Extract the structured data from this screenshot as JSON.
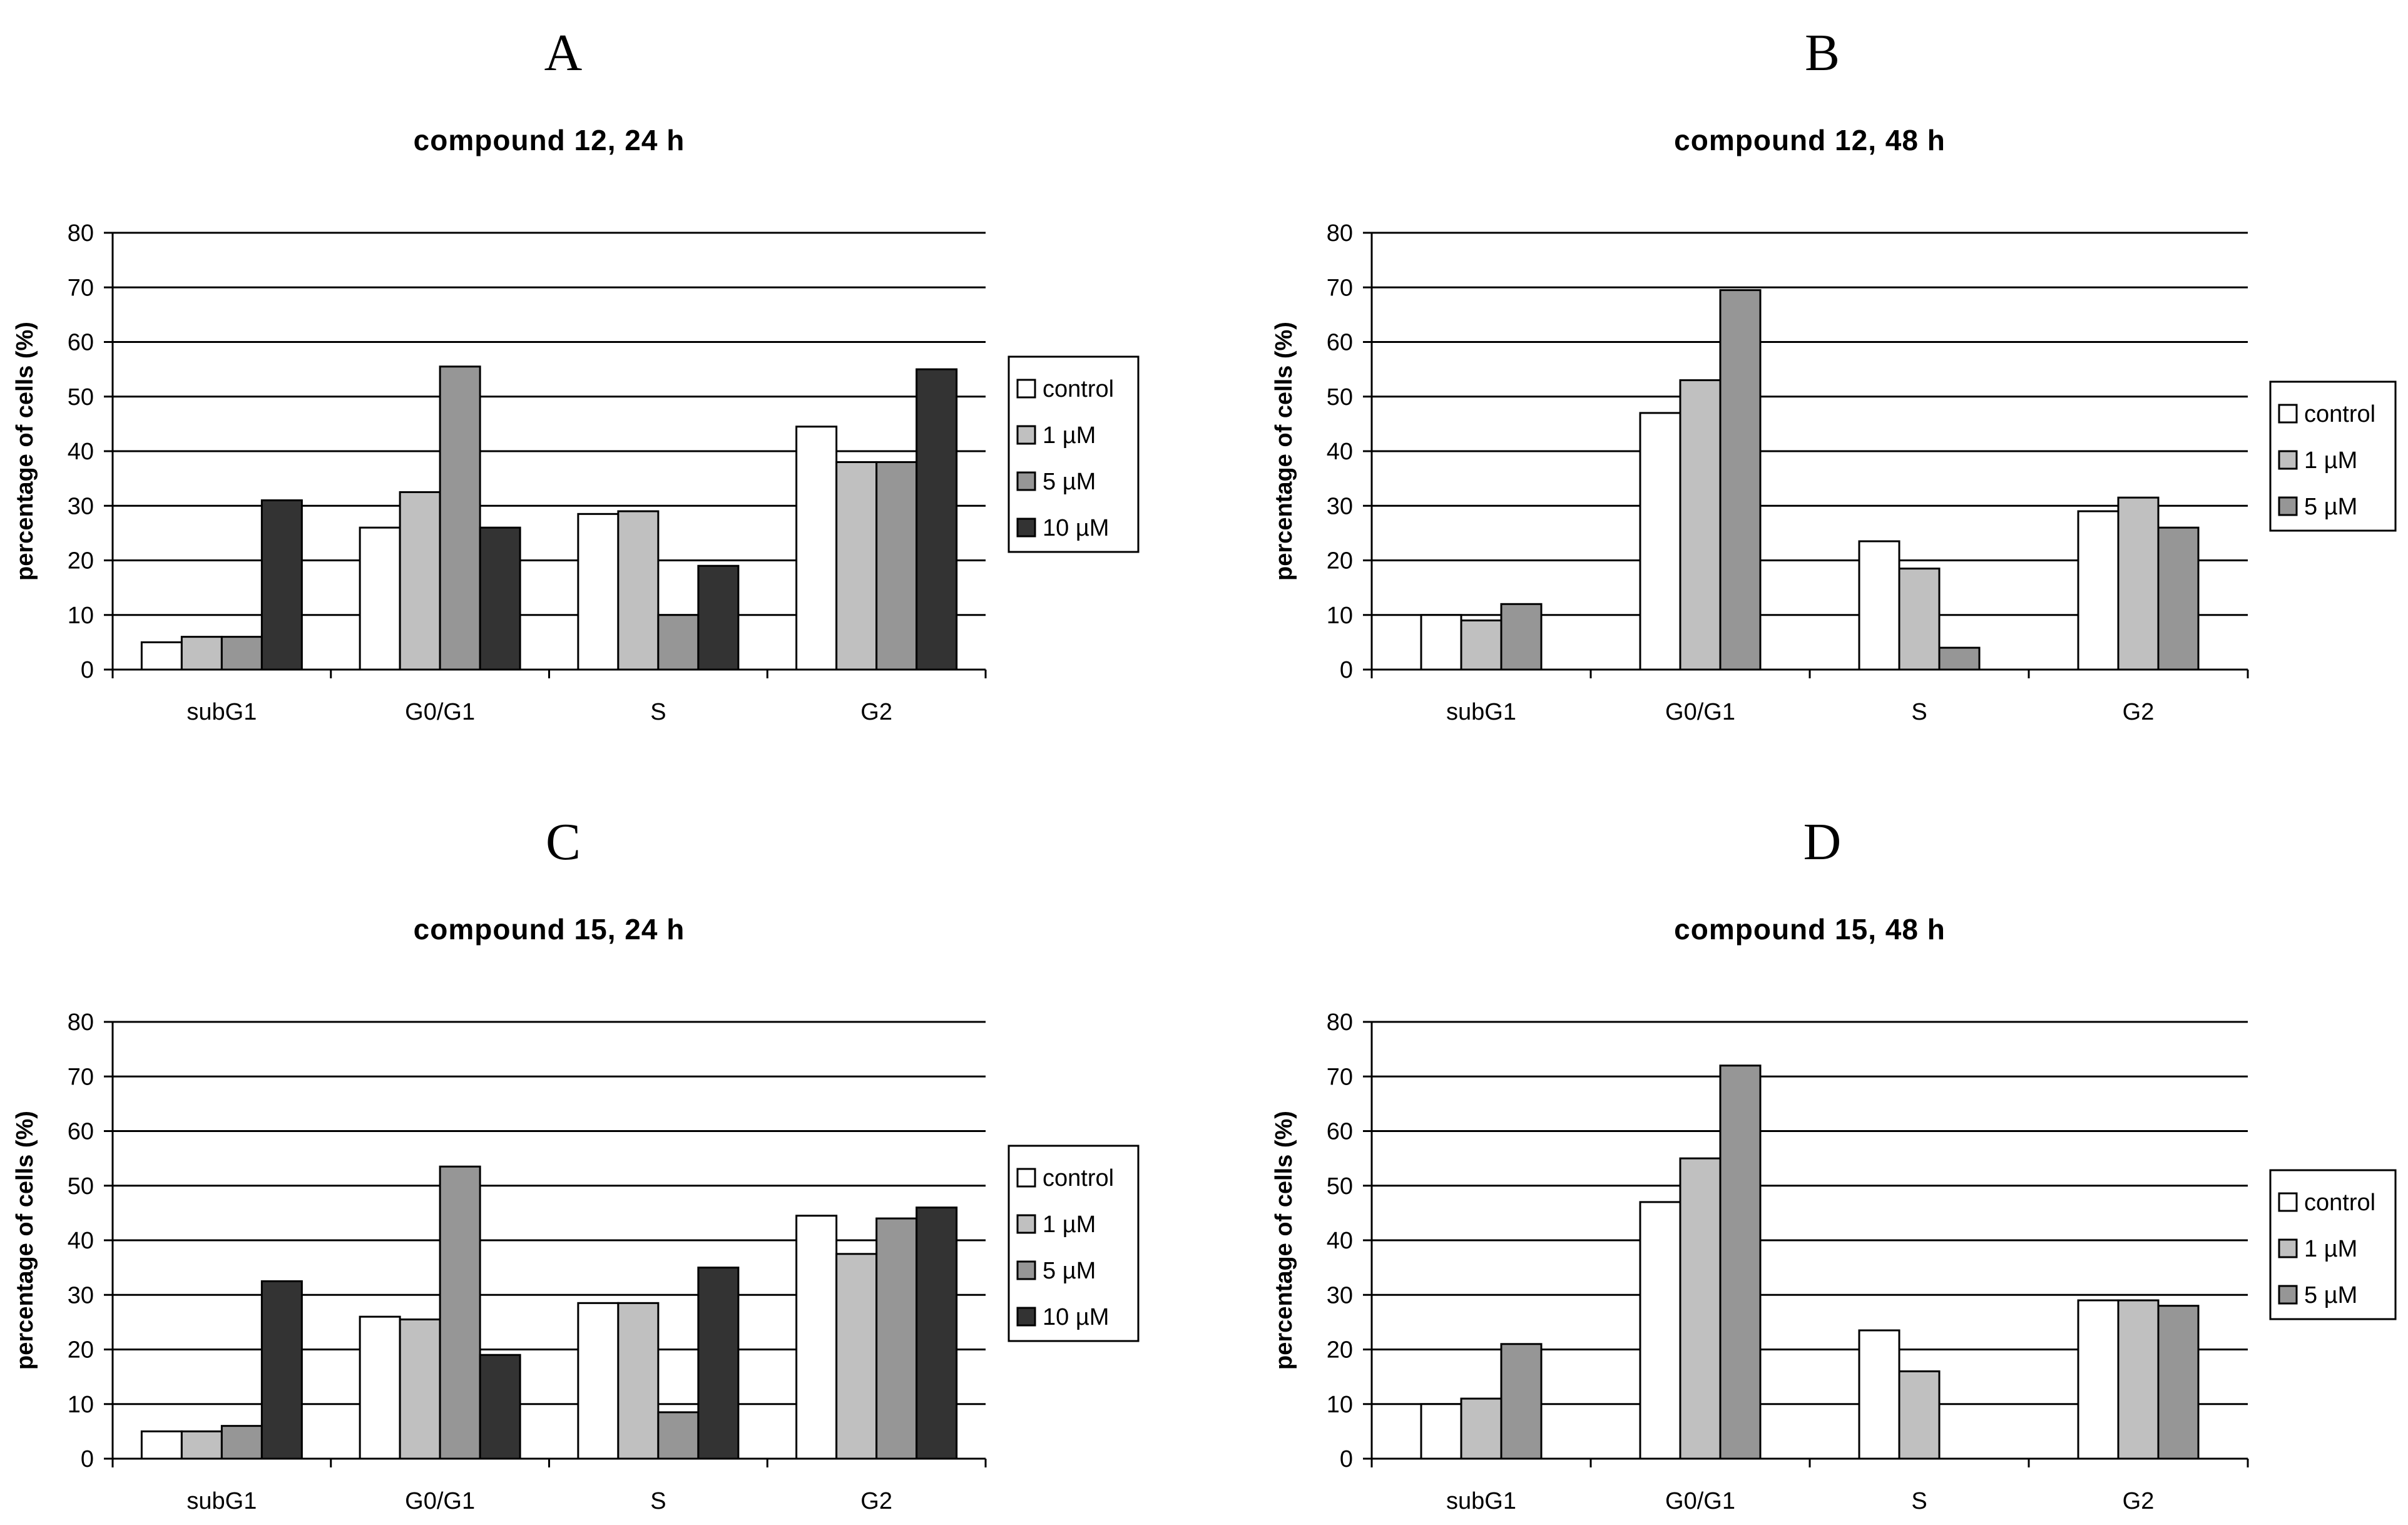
{
  "colors": {
    "control": "#ffffff",
    "1 µM": "#c0c0c0",
    "5 µM": "#969696",
    "10 µM": "#333333",
    "gridline": "#000000",
    "bar_stroke": "#000000"
  },
  "panels": [
    {
      "letter": "A"
    },
    {
      "letter": "B"
    },
    {
      "letter": "C"
    },
    {
      "letter": "D"
    }
  ],
  "chart_data": [
    {
      "type": "bar",
      "panel": "A",
      "title": "compound 12, 24 h",
      "xlabel": "",
      "ylabel": "percentage of cells (%)",
      "categories": [
        "subG1",
        "G0/G1",
        "S",
        "G2"
      ],
      "ylim": [
        0,
        80
      ],
      "yticks": [
        0,
        10,
        20,
        30,
        40,
        50,
        60,
        70,
        80
      ],
      "grid": true,
      "legend_position": "right",
      "series": [
        {
          "name": "control",
          "values": [
            5,
            26,
            28.5,
            44.5
          ]
        },
        {
          "name": "1 µM",
          "values": [
            6,
            32.5,
            29,
            38
          ]
        },
        {
          "name": "5 µM",
          "values": [
            6,
            55.5,
            10,
            38
          ]
        },
        {
          "name": "10 µM",
          "values": [
            31,
            26,
            19,
            55
          ]
        }
      ]
    },
    {
      "type": "bar",
      "panel": "B",
      "title": "compound 12, 48 h",
      "xlabel": "",
      "ylabel": "percentage of cells (%)",
      "categories": [
        "subG1",
        "G0/G1",
        "S",
        "G2"
      ],
      "ylim": [
        0,
        80
      ],
      "yticks": [
        0,
        10,
        20,
        30,
        40,
        50,
        60,
        70,
        80
      ],
      "grid": true,
      "legend_position": "right",
      "series": [
        {
          "name": "control",
          "values": [
            10,
            47,
            23.5,
            29
          ]
        },
        {
          "name": "1 µM",
          "values": [
            9,
            53,
            18.5,
            31.5
          ]
        },
        {
          "name": "5 µM",
          "values": [
            12,
            69.5,
            4,
            26
          ]
        }
      ]
    },
    {
      "type": "bar",
      "panel": "C",
      "title": "compound 15, 24 h",
      "xlabel": "",
      "ylabel": "percentage of cells (%)",
      "categories": [
        "subG1",
        "G0/G1",
        "S",
        "G2"
      ],
      "ylim": [
        0,
        80
      ],
      "yticks": [
        0,
        10,
        20,
        30,
        40,
        50,
        60,
        70,
        80
      ],
      "grid": true,
      "legend_position": "right",
      "series": [
        {
          "name": "control",
          "values": [
            5,
            26,
            28.5,
            44.5
          ]
        },
        {
          "name": "1 µM",
          "values": [
            5,
            25.5,
            28.5,
            37.5
          ]
        },
        {
          "name": "5 µM",
          "values": [
            6,
            53.5,
            8.5,
            44
          ]
        },
        {
          "name": "10 µM",
          "values": [
            32.5,
            19,
            35,
            46
          ]
        }
      ]
    },
    {
      "type": "bar",
      "panel": "D",
      "title": "compound 15, 48 h",
      "xlabel": "",
      "ylabel": "percentage of cells (%)",
      "categories": [
        "subG1",
        "G0/G1",
        "S",
        "G2"
      ],
      "ylim": [
        0,
        80
      ],
      "yticks": [
        0,
        10,
        20,
        30,
        40,
        50,
        60,
        70,
        80
      ],
      "grid": true,
      "legend_position": "right",
      "series": [
        {
          "name": "control",
          "values": [
            10,
            47,
            23.5,
            29
          ]
        },
        {
          "name": "1 µM",
          "values": [
            11,
            55,
            16,
            29
          ]
        },
        {
          "name": "5 µM",
          "values": [
            21,
            72,
            0,
            28
          ]
        }
      ]
    }
  ]
}
